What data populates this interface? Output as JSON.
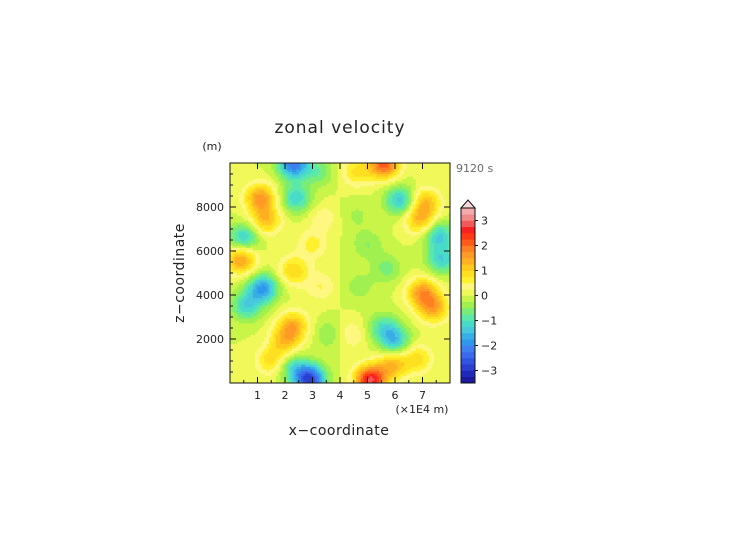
{
  "chart_data": {
    "type": "heatmap",
    "title": "zonal velocity",
    "xlabel": "x−coordinate",
    "ylabel": "z−coordinate",
    "y_unit": "(m)",
    "x_unit": "(×1E4 m)",
    "time_label": "9120 s",
    "xlim": [
      0,
      8
    ],
    "ylim": [
      0,
      10000
    ],
    "x_ticks": [
      "1",
      "2",
      "3",
      "4",
      "5",
      "6",
      "7"
    ],
    "y_ticks": [
      "2000",
      "4000",
      "6000",
      "8000"
    ],
    "colorbar": {
      "levels": [
        -3.5,
        -3.25,
        -3,
        -2.75,
        -2.5,
        -2.25,
        -2,
        -1.75,
        -1.5,
        -1.25,
        -1,
        -0.75,
        -0.5,
        -0.25,
        0,
        0.25,
        0.5,
        0.75,
        1,
        1.25,
        1.5,
        1.75,
        2,
        2.25,
        2.5,
        2.75,
        3,
        3.25,
        3.5
      ],
      "tick_labels": [
        "3",
        "2",
        "1",
        "0",
        "−1",
        "−2",
        "−3"
      ],
      "extend": "max",
      "colors": [
        "#1a1a9c",
        "#1f2bb8",
        "#2a3fd0",
        "#2f55e0",
        "#3a6bec",
        "#3f7ff0",
        "#2f97ec",
        "#38aee6",
        "#48c8dc",
        "#48dcc8",
        "#5ce8a8",
        "#78ee78",
        "#a0f050",
        "#c8f548",
        "#f0f85a",
        "#fff880",
        "#fff030",
        "#ffe020",
        "#ffc81e",
        "#ffb020",
        "#ff9a26",
        "#ff7f22",
        "#ff5a1a",
        "#ff3a14",
        "#f82020",
        "#f05a5a",
        "#f08a8a",
        "#f4aaaa"
      ],
      "extend_color": "#f8d8d8"
    },
    "features": [
      {
        "x": 1.3,
        "z": 7400,
        "v": 1.2
      },
      {
        "x": 1.1,
        "z": 8400,
        "v": 1.6
      },
      {
        "x": 6.9,
        "z": 7400,
        "v": 1.2
      },
      {
        "x": 7.1,
        "z": 8200,
        "v": 1.2
      },
      {
        "x": 0.5,
        "z": 6600,
        "v": -1.3
      },
      {
        "x": 7.6,
        "z": 6700,
        "v": -1.3
      },
      {
        "x": 2.4,
        "z": 8400,
        "v": -1.2
      },
      {
        "x": 6.2,
        "z": 8300,
        "v": -1.4
      },
      {
        "x": 1.2,
        "z": 4300,
        "v": -1.8
      },
      {
        "x": 0.6,
        "z": 3500,
        "v": -1.2
      },
      {
        "x": 7.0,
        "z": 4100,
        "v": 1.6
      },
      {
        "x": 7.4,
        "z": 3400,
        "v": 1.4
      },
      {
        "x": 0.4,
        "z": 5600,
        "v": 1.6
      },
      {
        "x": 7.7,
        "z": 5600,
        "v": -1.2
      },
      {
        "x": 2.3,
        "z": 2600,
        "v": 1.3
      },
      {
        "x": 2.0,
        "z": 1900,
        "v": 1.1
      },
      {
        "x": 6.0,
        "z": 1900,
        "v": -1.3
      },
      {
        "x": 5.6,
        "z": 2500,
        "v": -1.0
      },
      {
        "x": 1.5,
        "z": 1000,
        "v": 0.9
      },
      {
        "x": 2.3,
        "z": 700,
        "v": -1.0
      },
      {
        "x": 2.9,
        "z": 150,
        "v": -2.8
      },
      {
        "x": 5.1,
        "z": 120,
        "v": 2.8
      },
      {
        "x": 5.9,
        "z": 800,
        "v": 1.3
      },
      {
        "x": 6.8,
        "z": 1100,
        "v": 0.9
      },
      {
        "x": 2.3,
        "z": 9950,
        "v": -2.2
      },
      {
        "x": 5.6,
        "z": 9950,
        "v": 2.2
      },
      {
        "x": 3.2,
        "z": 9600,
        "v": -0.7
      },
      {
        "x": 4.6,
        "z": 9600,
        "v": 0.8
      },
      {
        "x": 3.3,
        "z": 4400,
        "v": 0.5
      },
      {
        "x": 4.7,
        "z": 4400,
        "v": -0.4
      },
      {
        "x": 3.0,
        "z": 6300,
        "v": 0.6
      },
      {
        "x": 5.0,
        "z": 6300,
        "v": -0.5
      },
      {
        "x": 3.6,
        "z": 2200,
        "v": -0.5
      },
      {
        "x": 4.4,
        "z": 2200,
        "v": 0.5
      },
      {
        "x": 2.3,
        "z": 5100,
        "v": 1.0
      },
      {
        "x": 5.7,
        "z": 5200,
        "v": -0.6
      },
      {
        "x": 3.4,
        "z": 7500,
        "v": 0.4
      },
      {
        "x": 4.6,
        "z": 7600,
        "v": -0.3
      }
    ]
  }
}
